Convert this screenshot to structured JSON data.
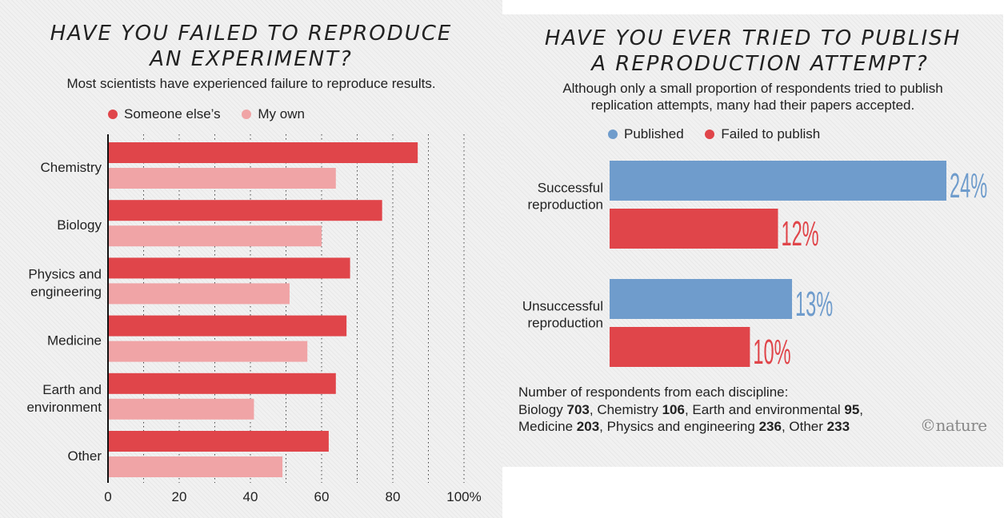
{
  "left_panel": {
    "title_line1": "HAVE YOU FAILED TO REPRODUCE",
    "title_line2": "AN EXPERIMENT?",
    "subtitle": "Most scientists have experienced failure to reproduce results."
  },
  "right_panel": {
    "title_line1": "HAVE YOU EVER TRIED TO PUBLISH",
    "title_line2": "A REPRODUCTION ATTEMPT?",
    "subtitle_line1": "Although only a small proportion of respondents tried to publish",
    "subtitle_line2": "replication attempts, many had their papers accepted.",
    "footnote": {
      "heading": "Number of respondents from each discipline:",
      "entries": [
        {
          "label": "Biology",
          "value": "703"
        },
        {
          "label": "Chemistry",
          "value": "106"
        },
        {
          "label": "Earth and environmental",
          "value": "95"
        },
        {
          "label": "Medicine",
          "value": "203"
        },
        {
          "label": "Physics and engineering",
          "value": "236"
        },
        {
          "label": "Other",
          "value": "233"
        }
      ]
    },
    "logo": "©nature"
  },
  "colors": {
    "someone_else": "#e0454a",
    "my_own": "#f0a4a6",
    "published": "#6f9ccc",
    "failed": "#e0454a"
  },
  "chart_data": [
    {
      "type": "bar",
      "orientation": "horizontal",
      "categories": [
        [
          "Chemistry"
        ],
        [
          "Biology"
        ],
        [
          "Physics and",
          "engineering"
        ],
        [
          "Medicine"
        ],
        [
          "Earth and",
          "environment"
        ],
        [
          "Other"
        ]
      ],
      "series": [
        {
          "name": "Someone else’s",
          "values": [
            87,
            77,
            68,
            67,
            64,
            62
          ]
        },
        {
          "name": "My own",
          "values": [
            64,
            60,
            51,
            56,
            41,
            49
          ]
        }
      ],
      "xlim": [
        0,
        100
      ],
      "ticks": [
        0,
        20,
        40,
        60,
        80,
        100
      ],
      "tick_labels": [
        "0",
        "20",
        "40",
        "60",
        "80",
        "100%"
      ],
      "grid": "dotted vertical",
      "legend": "top"
    },
    {
      "type": "bar",
      "orientation": "horizontal",
      "categories": [
        [
          "Successful",
          "reproduction"
        ],
        [
          "Unsuccessful",
          "reproduction"
        ]
      ],
      "series": [
        {
          "name": "Published",
          "values": [
            24,
            13
          ],
          "labels": [
            "24%",
            "13%"
          ]
        },
        {
          "name": "Failed to publish",
          "values": [
            12,
            10
          ],
          "labels": [
            "12%",
            "10%"
          ]
        }
      ],
      "legend": "top"
    }
  ]
}
